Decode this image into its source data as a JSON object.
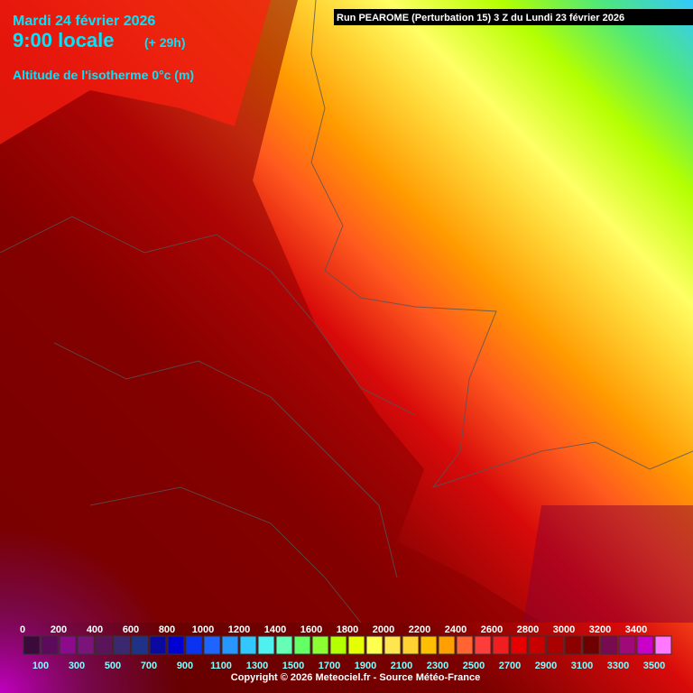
{
  "header": {
    "date": "Mardi 24 février 2026",
    "time": "9:00 locale",
    "lead": "(+ 29h)",
    "parameter": "Altitude de l'isotherme 0°c (m)",
    "run": "Run PEAROME (Perturbation 15) 3 Z du Lundi 23 février 2026"
  },
  "legend": {
    "levels": [
      0,
      100,
      200,
      300,
      400,
      500,
      600,
      700,
      800,
      900,
      1000,
      1100,
      1200,
      1300,
      1400,
      1500,
      1600,
      1700,
      1800,
      1900,
      2000,
      2100,
      2200,
      2300,
      2400,
      2500,
      2600,
      2700,
      2800,
      2900,
      3000,
      3100,
      3200,
      3300,
      3400,
      3500
    ],
    "colors": [
      "#3a0a3a",
      "#5c0a5c",
      "#8c0a8c",
      "#7a147a",
      "#5a145a",
      "#3c2870",
      "#1e3288",
      "#0a0aa0",
      "#0000d2",
      "#0a32f0",
      "#1e64ff",
      "#2896ff",
      "#32c8ff",
      "#50f0f0",
      "#64ffb4",
      "#64ff64",
      "#8cff32",
      "#b4ff00",
      "#e6ff00",
      "#ffff50",
      "#ffe650",
      "#ffd232",
      "#ffbe00",
      "#ffa000",
      "#ff6432",
      "#ff3c3c",
      "#f01e1e",
      "#e60000",
      "#c80000",
      "#aa0000",
      "#8c0000",
      "#6e0000",
      "#780a50",
      "#a00a78",
      "#c800c8",
      "#ff78ff"
    ]
  },
  "footer": {
    "copyright": "Copyright © 2026 Meteociel.fr - Source Météo-France"
  }
}
